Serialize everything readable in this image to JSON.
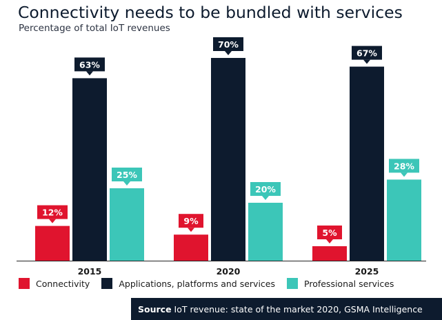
{
  "title": "Connectivity needs to be bundled with services",
  "subtitle": "Percentage of total IoT revenues",
  "colors": {
    "connectivity": "#e0142e",
    "applications": "#0d1b2e",
    "professional": "#3cc6b8",
    "axis": "#222222"
  },
  "chart_data": {
    "type": "bar",
    "title": "Connectivity needs to be bundled with services",
    "subtitle": "Percentage of total IoT revenues",
    "categories": [
      "2015",
      "2020",
      "2025"
    ],
    "series": [
      {
        "name": "Connectivity",
        "values": [
          12,
          9,
          5
        ],
        "labels": [
          "12%",
          "9%",
          "5%"
        ]
      },
      {
        "name": "Applications, platforms and services",
        "values": [
          63,
          70,
          67
        ],
        "labels": [
          "63%",
          "70%",
          "67%"
        ]
      },
      {
        "name": "Professional services",
        "values": [
          25,
          20,
          28
        ],
        "labels": [
          "25%",
          "20%",
          "28%"
        ]
      }
    ],
    "ylim": [
      0,
      70
    ],
    "grid": false,
    "legend": "bottom"
  },
  "source": {
    "label": "Source",
    "text": "IoT revenue: state of the market 2020, GSMA Intelligence"
  }
}
